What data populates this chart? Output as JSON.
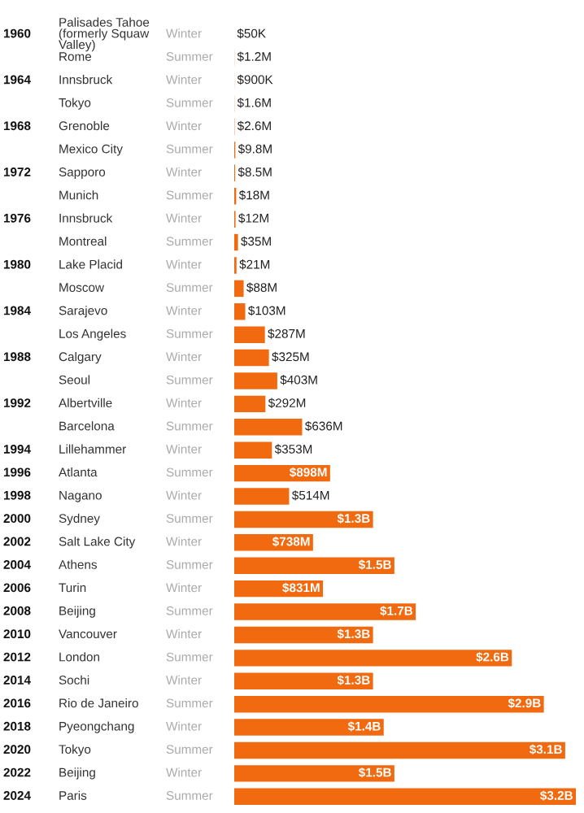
{
  "chart_data": {
    "type": "bar",
    "orientation": "horizontal",
    "categories": [
      "Palisades Tahoe (formerly Squaw Valley)",
      "Rome",
      "Innsbruck",
      "Tokyo",
      "Grenoble",
      "Mexico City",
      "Sapporo",
      "Munich",
      "Innsbruck",
      "Montreal",
      "Lake Placid",
      "Moscow",
      "Sarajevo",
      "Los Angeles",
      "Calgary",
      "Seoul",
      "Albertville",
      "Barcelona",
      "Lillehammer",
      "Atlanta",
      "Nagano",
      "Sydney",
      "Salt Lake City",
      "Athens",
      "Turin",
      "Beijing",
      "Vancouver",
      "London",
      "Sochi",
      "Rio de Janeiro",
      "Pyeongchang",
      "Tokyo",
      "Beijing",
      "Paris"
    ],
    "values": [
      50000,
      1200000,
      900000,
      1600000,
      2600000,
      9800000,
      8500000,
      18000000,
      12000000,
      35000000,
      21000000,
      88000000,
      103000000,
      287000000,
      325000000,
      403000000,
      292000000,
      636000000,
      353000000,
      898000000,
      514000000,
      1300000000,
      738000000,
      1500000000,
      831000000,
      1700000000,
      1300000000,
      2600000000,
      1300000000,
      2900000000,
      1400000000,
      3100000000,
      1500000000,
      3200000000
    ],
    "value_labels": [
      "$50K",
      "$1.2M",
      "$900K",
      "$1.6M",
      "$2.6M",
      "$9.8M",
      "$8.5M",
      "$18M",
      "$12M",
      "$35M",
      "$21M",
      "$88M",
      "$103M",
      "$287M",
      "$325M",
      "$403M",
      "$292M",
      "$636M",
      "$353M",
      "$898M",
      "$514M",
      "$1.3B",
      "$738M",
      "$1.5B",
      "$831M",
      "$1.7B",
      "$1.3B",
      "$2.6B",
      "$1.3B",
      "$2.9B",
      "$1.4B",
      "$3.1B",
      "$1.5B",
      "$3.2B"
    ],
    "color": "#f26a10",
    "annotations": [
      "1960",
      null,
      "1964",
      null,
      "1968",
      null,
      "1972",
      null,
      "1976",
      null,
      "1980",
      null,
      "1984",
      null,
      "1988",
      null,
      "1992",
      null,
      "1994",
      "1996",
      "1998",
      "2000",
      "2002",
      "2004",
      "2006",
      "2008",
      "2010",
      "2012",
      "2014",
      "2016",
      "2018",
      "2020",
      "2022",
      "2024",
      "Winter",
      "Summer",
      "Winter",
      "Summer",
      "Winter",
      "Summer",
      "Winter",
      "Summer",
      "Winter",
      "Summer",
      "Winter",
      "Summer",
      "Winter",
      "Summer",
      "Winter",
      "Summer",
      "Winter",
      "Summer",
      "Winter",
      "Summer",
      "Winter",
      "Summer",
      "Winter",
      "Summer",
      "Winter",
      "Summer",
      "Winter",
      "Summer",
      "Winter",
      "Summer",
      "Winter",
      "Summer",
      "Winter",
      "Summer"
    ]
  }
}
